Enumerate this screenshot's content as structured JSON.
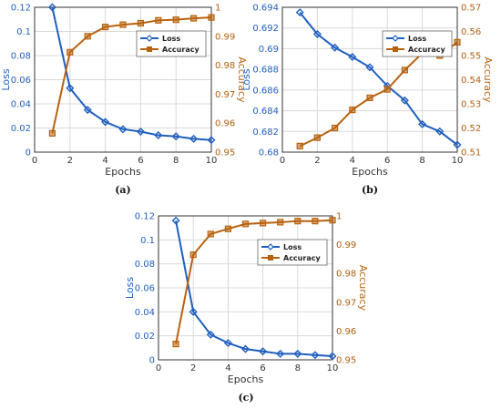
{
  "colors": {
    "loss": "#1f5fbf",
    "accuracy": "#b8620f",
    "grid": "#d9d9d9",
    "axis": "#333333"
  },
  "chart_data": [
    {
      "type": "line",
      "panel_label": "(a)",
      "xlabel": "Epochs",
      "ylabel": "Loss",
      "y2label": "Accuracy",
      "xlim": [
        0,
        10
      ],
      "ylim": [
        0,
        0.12
      ],
      "y2lim": [
        0.95,
        1.0
      ],
      "xticks": [
        "0",
        "2",
        "4",
        "6",
        "8",
        "10"
      ],
      "yticks": [
        "0",
        "0.02",
        "0.04",
        "0.06",
        "0.08",
        "0.1",
        "0.12"
      ],
      "y2ticks": [
        "0.95",
        "0.96",
        "0.97",
        "0.98",
        "0.99",
        "1"
      ],
      "legend_position": "top-right",
      "grid": true,
      "x": [
        1,
        2,
        3,
        4,
        5,
        6,
        7,
        8,
        9,
        10
      ],
      "series": [
        {
          "name": "Loss",
          "axis": "left",
          "marker": "diamond",
          "values": [
            0.12,
            0.053,
            0.035,
            0.025,
            0.019,
            0.017,
            0.014,
            0.013,
            0.011,
            0.01
          ]
        },
        {
          "name": "Accuracy",
          "axis": "right",
          "marker": "square",
          "values": [
            0.9565,
            0.9845,
            0.99,
            0.9932,
            0.994,
            0.9945,
            0.9955,
            0.9957,
            0.9962,
            0.9965
          ]
        }
      ]
    },
    {
      "type": "line",
      "panel_label": "(b)",
      "xlabel": "Epochs",
      "ylabel": "Loss",
      "y2label": "Accuracy",
      "xlim": [
        0,
        10
      ],
      "ylim": [
        0.68,
        0.694
      ],
      "y2lim": [
        0.51,
        0.57
      ],
      "xticks": [
        "0",
        "2",
        "4",
        "6",
        "8",
        "10"
      ],
      "yticks": [
        "0.68",
        "0.682",
        "0.684",
        "0.686",
        "0.688",
        "0.69",
        "0.692",
        "0.694"
      ],
      "y2ticks": [
        "0.51",
        "0.52",
        "0.53",
        "0.54",
        "0.55",
        "0.56",
        "0.57"
      ],
      "legend_position": "top-right",
      "grid": true,
      "x": [
        1,
        2,
        3,
        4,
        5,
        6,
        7,
        8,
        9,
        10
      ],
      "series": [
        {
          "name": "Loss",
          "axis": "left",
          "marker": "diamond",
          "values": [
            0.6935,
            0.6914,
            0.6901,
            0.6892,
            0.6882,
            0.6864,
            0.685,
            0.6827,
            0.682,
            0.6807
          ]
        },
        {
          "name": "Accuracy",
          "axis": "right",
          "marker": "square",
          "values": [
            0.5125,
            0.516,
            0.52,
            0.5275,
            0.5325,
            0.536,
            0.544,
            0.551,
            0.55,
            0.5555
          ]
        }
      ]
    },
    {
      "type": "line",
      "panel_label": "(c)",
      "xlabel": "Epochs",
      "ylabel": "Loss",
      "y2label": "Accuracy",
      "xlim": [
        0,
        10
      ],
      "ylim": [
        0,
        0.12
      ],
      "y2lim": [
        0.95,
        1.0
      ],
      "xticks": [
        "0",
        "2",
        "4",
        "6",
        "8",
        "10"
      ],
      "yticks": [
        "0",
        "0.02",
        "0.04",
        "0.06",
        "0.08",
        "0.1",
        "0.12"
      ],
      "y2ticks": [
        "0.95",
        "0.96",
        "0.97",
        "0.98",
        "0.99",
        "1"
      ],
      "legend_position": "top-right",
      "grid": true,
      "x": [
        1,
        2,
        3,
        4,
        5,
        6,
        7,
        8,
        9,
        10
      ],
      "series": [
        {
          "name": "Loss",
          "axis": "left",
          "marker": "diamond",
          "values": [
            0.116,
            0.04,
            0.021,
            0.014,
            0.009,
            0.007,
            0.005,
            0.005,
            0.004,
            0.003
          ]
        },
        {
          "name": "Accuracy",
          "axis": "right",
          "marker": "square",
          "values": [
            0.9555,
            0.9865,
            0.9937,
            0.9955,
            0.9972,
            0.9975,
            0.9978,
            0.9982,
            0.9982,
            0.9985
          ]
        }
      ]
    }
  ]
}
